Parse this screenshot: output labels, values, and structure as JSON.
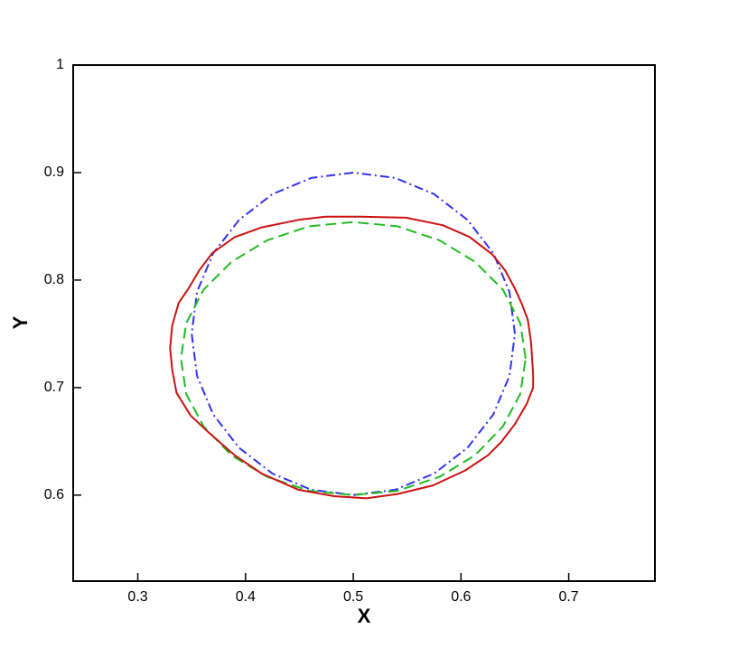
{
  "chart_data": {
    "type": "line",
    "x_label": "X",
    "y_label": "Y",
    "xlim": [
      0.24,
      0.78
    ],
    "ylim": [
      0.52,
      1
    ],
    "xticks": [
      0.3,
      0.4,
      0.5,
      0.6,
      0.7
    ],
    "yticks": [
      0.6,
      0.7,
      0.8,
      0.9,
      1
    ],
    "series": [
      {
        "color": "#3333ee",
        "dash": "dashdot",
        "x": [
          0.65,
          0.645,
          0.63,
          0.606,
          0.575,
          0.539,
          0.5,
          0.461,
          0.425,
          0.394,
          0.37,
          0.355,
          0.35,
          0.355,
          0.37,
          0.394,
          0.425,
          0.461,
          0.5,
          0.539,
          0.575,
          0.606,
          0.63,
          0.645,
          0.65
        ],
        "y": [
          0.75,
          0.789,
          0.825,
          0.856,
          0.88,
          0.895,
          0.9,
          0.895,
          0.88,
          0.856,
          0.825,
          0.789,
          0.75,
          0.711,
          0.675,
          0.644,
          0.62,
          0.605,
          0.6,
          0.605,
          0.62,
          0.644,
          0.675,
          0.711,
          0.75
        ]
      },
      {
        "color": "#22bb22",
        "dash": "dashed",
        "x": [
          0.66,
          0.655,
          0.639,
          0.613,
          0.58,
          0.541,
          0.5,
          0.459,
          0.42,
          0.387,
          0.361,
          0.345,
          0.34,
          0.345,
          0.361,
          0.387,
          0.42,
          0.459,
          0.5,
          0.541,
          0.58,
          0.613,
          0.639,
          0.655,
          0.66
        ],
        "y": [
          0.727,
          0.76,
          0.791,
          0.817,
          0.837,
          0.85,
          0.854,
          0.85,
          0.837,
          0.817,
          0.791,
          0.76,
          0.727,
          0.694,
          0.664,
          0.637,
          0.617,
          0.604,
          0.6,
          0.604,
          0.617,
          0.637,
          0.664,
          0.694,
          0.727
        ]
      },
      {
        "color": "#cc1111",
        "dash": "solid",
        "x": [
          0.667,
          0.665,
          0.662,
          0.656,
          0.65,
          0.641,
          0.629,
          0.608,
          0.583,
          0.549,
          0.507,
          0.474,
          0.449,
          0.415,
          0.39,
          0.369,
          0.357,
          0.347,
          0.338,
          0.332,
          0.33,
          0.332,
          0.336,
          0.349,
          0.366,
          0.39,
          0.415,
          0.449,
          0.482,
          0.512,
          0.541,
          0.574,
          0.604,
          0.625,
          0.637,
          0.65,
          0.661,
          0.667,
          0.667
        ],
        "y": [
          0.712,
          0.742,
          0.763,
          0.779,
          0.792,
          0.809,
          0.824,
          0.84,
          0.851,
          0.858,
          0.859,
          0.859,
          0.856,
          0.849,
          0.84,
          0.825,
          0.809,
          0.792,
          0.779,
          0.758,
          0.737,
          0.716,
          0.695,
          0.674,
          0.658,
          0.637,
          0.62,
          0.605,
          0.599,
          0.597,
          0.601,
          0.609,
          0.623,
          0.637,
          0.649,
          0.666,
          0.685,
          0.7,
          0.712
        ]
      }
    ]
  }
}
